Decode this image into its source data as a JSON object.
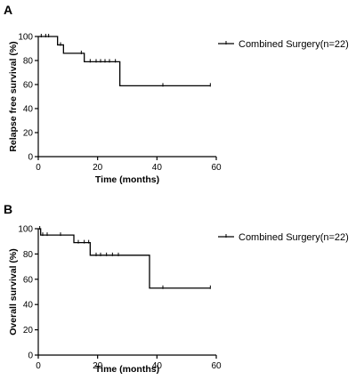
{
  "chart_data": [
    {
      "type": "line",
      "panel_label": "A",
      "ylabel": "Relapse free survival (%)",
      "xlabel": "Time (months)",
      "xlim": [
        0,
        60
      ],
      "ylim": [
        0,
        100
      ],
      "xticks": [
        0,
        20,
        40,
        60
      ],
      "yticks": [
        0,
        20,
        40,
        60,
        80,
        100
      ],
      "legend_position": "top-right",
      "series": [
        {
          "name": "Combined Surgery(n=22)",
          "steps": [
            {
              "x": 0,
              "y": 100
            },
            {
              "x": 6.5,
              "y": 93
            },
            {
              "x": 8.5,
              "y": 86
            },
            {
              "x": 15.5,
              "y": 79
            },
            {
              "x": 27.5,
              "y": 59
            },
            {
              "x": 58,
              "y": 59
            }
          ],
          "censored": [
            {
              "x": 1,
              "y": 100
            },
            {
              "x": 2.5,
              "y": 100
            },
            {
              "x": 3.5,
              "y": 100
            },
            {
              "x": 7.5,
              "y": 93
            },
            {
              "x": 14.5,
              "y": 86
            },
            {
              "x": 17.5,
              "y": 79
            },
            {
              "x": 19.5,
              "y": 79
            },
            {
              "x": 21,
              "y": 79
            },
            {
              "x": 22.5,
              "y": 79
            },
            {
              "x": 24,
              "y": 79
            },
            {
              "x": 26,
              "y": 79
            },
            {
              "x": 42,
              "y": 59
            },
            {
              "x": 58,
              "y": 59
            }
          ]
        }
      ]
    },
    {
      "type": "line",
      "panel_label": "B",
      "ylabel": "Overall survival (%)",
      "xlabel": "Time (months)",
      "xlim": [
        0,
        60
      ],
      "ylim": [
        0,
        100
      ],
      "xticks": [
        0,
        20,
        40,
        60
      ],
      "yticks": [
        0,
        20,
        40,
        60,
        80,
        100
      ],
      "legend_position": "top-right",
      "series": [
        {
          "name": "Combined Surgery(n=22)",
          "steps": [
            {
              "x": 0,
              "y": 100
            },
            {
              "x": 0.8,
              "y": 95
            },
            {
              "x": 12,
              "y": 89
            },
            {
              "x": 17.5,
              "y": 79
            },
            {
              "x": 37.5,
              "y": 53
            },
            {
              "x": 58,
              "y": 53
            }
          ],
          "censored": [
            {
              "x": 0.5,
              "y": 100
            },
            {
              "x": 1.5,
              "y": 95
            },
            {
              "x": 3,
              "y": 95
            },
            {
              "x": 7.5,
              "y": 95
            },
            {
              "x": 13.5,
              "y": 89
            },
            {
              "x": 15.5,
              "y": 89
            },
            {
              "x": 17,
              "y": 89
            },
            {
              "x": 19.5,
              "y": 79
            },
            {
              "x": 21,
              "y": 79
            },
            {
              "x": 23,
              "y": 79
            },
            {
              "x": 25,
              "y": 79
            },
            {
              "x": 27,
              "y": 79
            },
            {
              "x": 42,
              "y": 53
            },
            {
              "x": 58,
              "y": 53
            }
          ]
        }
      ]
    }
  ]
}
